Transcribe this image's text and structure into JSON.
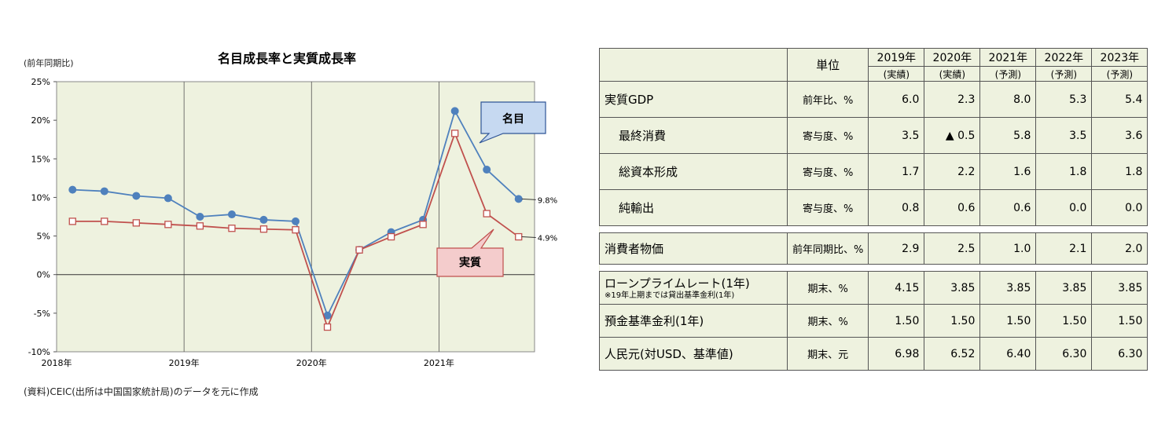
{
  "chart_data": {
    "type": "line",
    "title": "名目成長率と実質成長率",
    "ylabel": "(前年同期比)",
    "ylim": [
      -10,
      25
    ],
    "yticks": [
      "25%",
      "20%",
      "15%",
      "10%",
      "5%",
      "0%",
      "-5%",
      "-10%"
    ],
    "ytick_values": [
      25,
      20,
      15,
      10,
      5,
      0,
      -5,
      -10
    ],
    "xticks": [
      "2018年",
      "2019年",
      "2020年",
      "2021年"
    ],
    "x": [
      1,
      2,
      3,
      4,
      5,
      6,
      7,
      8,
      9,
      10,
      11,
      12,
      13,
      14,
      15
    ],
    "series": [
      {
        "name": "名目",
        "color": "#4f81bd",
        "marker": "circle",
        "values": [
          11.0,
          10.8,
          10.2,
          9.9,
          7.5,
          7.8,
          7.1,
          6.9,
          -5.3,
          3.2,
          5.5,
          7.1,
          21.2,
          13.6,
          9.8
        ],
        "end_label": "9.8%"
      },
      {
        "name": "実質",
        "color": "#c0504d",
        "marker": "square",
        "values": [
          6.9,
          6.9,
          6.7,
          6.5,
          6.3,
          6.0,
          5.9,
          5.8,
          -6.8,
          3.2,
          4.9,
          6.5,
          18.3,
          7.9,
          4.9
        ],
        "end_label": "4.9%"
      }
    ],
    "plot_background": "#eef2df",
    "grid": "vertical at year boundaries",
    "source": "(資料)CEIC(出所は中国国家統計局)のデータを元に作成"
  },
  "table": {
    "header": {
      "unit_label": "単位",
      "years": [
        "2019年",
        "2020年",
        "2021年",
        "2022年",
        "2023年"
      ],
      "notes": [
        "(実績)",
        "(実績)",
        "(予測)",
        "(予測)",
        "(予測)"
      ]
    },
    "groups": [
      {
        "rows": [
          {
            "label": "実質GDP",
            "unit": "前年比、%",
            "values": [
              "6.0",
              "2.3",
              "8.0",
              "5.3",
              "5.4"
            ],
            "indent": false
          },
          {
            "label": "最終消費",
            "unit": "寄与度、%",
            "values": [
              "3.5",
              "▲ 0.5",
              "5.8",
              "3.5",
              "3.6"
            ],
            "indent": true
          },
          {
            "label": "総資本形成",
            "unit": "寄与度、%",
            "values": [
              "1.7",
              "2.2",
              "1.6",
              "1.8",
              "1.8"
            ],
            "indent": true
          },
          {
            "label": "純輸出",
            "unit": "寄与度、%",
            "values": [
              "0.8",
              "0.6",
              "0.6",
              "0.0",
              "0.0"
            ],
            "indent": true
          }
        ]
      },
      {
        "rows": [
          {
            "label": "消費者物価",
            "unit": "前年同期比、%",
            "values": [
              "2.9",
              "2.5",
              "1.0",
              "2.1",
              "2.0"
            ],
            "indent": false
          }
        ]
      },
      {
        "rows": [
          {
            "label": "ローンプライムレート(1年)",
            "note": "※19年上期までは貸出基準金利(1年)",
            "unit": "期末、%",
            "values": [
              "4.15",
              "3.85",
              "3.85",
              "3.85",
              "3.85"
            ],
            "indent": false
          },
          {
            "label": "預金基準金利(1年)",
            "unit": "期末、%",
            "values": [
              "1.50",
              "1.50",
              "1.50",
              "1.50",
              "1.50"
            ],
            "indent": false
          },
          {
            "label": "人民元(対USD、基準値)",
            "unit": "期末、元",
            "values": [
              "6.98",
              "6.52",
              "6.40",
              "6.30",
              "6.30"
            ],
            "indent": false
          }
        ]
      }
    ]
  }
}
